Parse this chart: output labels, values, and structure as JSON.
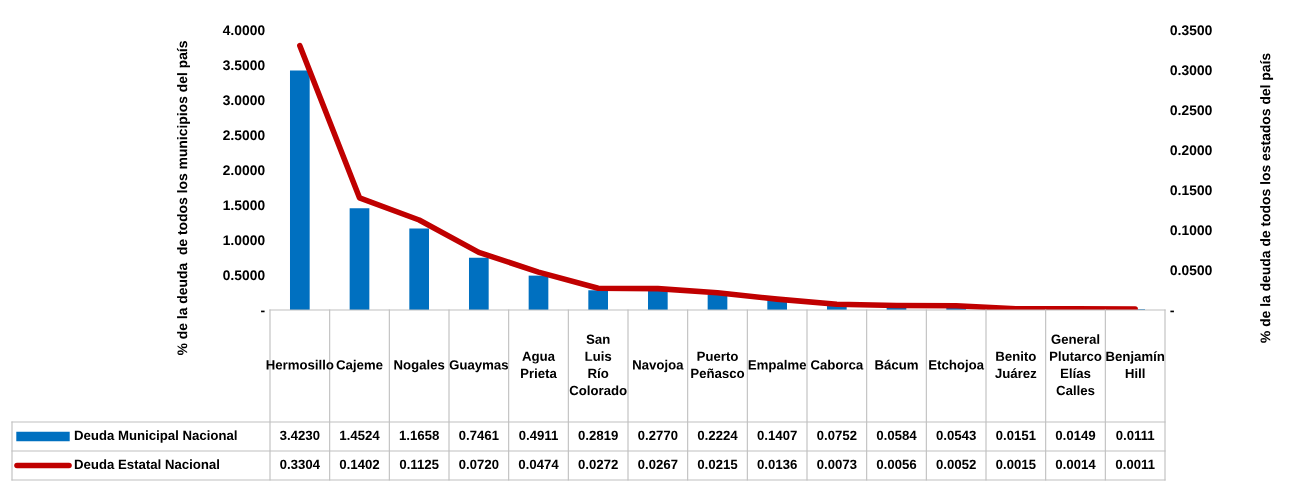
{
  "chart_data": {
    "type": "bar",
    "ylabel": "% de la deuda  de todos los municipios del país",
    "y2label": "% de la deuda de todos los estados del país",
    "categories": [
      "Hermosillo",
      "Cajeme",
      "Nogales",
      "Guaymas",
      "Agua Prieta",
      "San Luis Río Colorado",
      "Navojoa",
      "Puerto Peñasco",
      "Empalme",
      "Caborca",
      "Bácum",
      "Etchojoa",
      "Benito Juárez",
      "General Plutarco Elías Calles",
      "Benjamín Hill"
    ],
    "series": [
      {
        "name": "Deuda Municipal Nacional",
        "color": "#0070c0",
        "values": [
          3.423,
          1.4524,
          1.1658,
          0.7461,
          0.4911,
          0.2819,
          0.277,
          0.2224,
          0.1407,
          0.0752,
          0.0584,
          0.0543,
          0.0151,
          0.0149,
          0.0111
        ],
        "value_labels": [
          "3.4230",
          "1.4524",
          "1.1658",
          "0.7461",
          "0.4911",
          "0.2819",
          "0.2770",
          "0.2224",
          "0.1407",
          "0.0752",
          "0.0584",
          "0.0543",
          "0.0151",
          "0.0149",
          "0.0111"
        ]
      },
      {
        "name": "Deuda Estatal Nacional",
        "type": "line",
        "axis": "y2",
        "color": "#c00000",
        "values": [
          0.3304,
          0.1402,
          0.1125,
          0.072,
          0.0474,
          0.0272,
          0.0267,
          0.0215,
          0.0136,
          0.0073,
          0.0056,
          0.0052,
          0.0015,
          0.0014,
          0.0011
        ],
        "value_labels": [
          "0.3304",
          "0.1402",
          "0.1125",
          "0.0720",
          "0.0474",
          "0.0272",
          "0.0267",
          "0.0215",
          "0.0136",
          "0.0073",
          "0.0056",
          "0.0052",
          "0.0015",
          "0.0014",
          "0.0011"
        ]
      }
    ],
    "ylim": [
      0,
      4
    ],
    "yticks": [
      {
        "value": 0,
        "label": "-"
      },
      {
        "value": 0.5,
        "label": "0.5000"
      },
      {
        "value": 1,
        "label": "1.0000"
      },
      {
        "value": 1.5,
        "label": "1.5000"
      },
      {
        "value": 2,
        "label": "2.0000"
      },
      {
        "value": 2.5,
        "label": "2.5000"
      },
      {
        "value": 3,
        "label": "3.0000"
      },
      {
        "value": 3.5,
        "label": "3.5000"
      },
      {
        "value": 4,
        "label": "4.0000"
      }
    ],
    "y2lim": [
      0,
      0.35
    ],
    "y2ticks": [
      {
        "value": 0,
        "label": "-"
      },
      {
        "value": 0.05,
        "label": "0.0500"
      },
      {
        "value": 0.1,
        "label": "0.1000"
      },
      {
        "value": 0.15,
        "label": "0.1500"
      },
      {
        "value": 0.2,
        "label": "0.2000"
      },
      {
        "value": 0.25,
        "label": "0.2500"
      },
      {
        "value": 0.3,
        "label": "0.3000"
      },
      {
        "value": 0.35,
        "label": "0.3500"
      }
    ],
    "grid": false,
    "legend": "bottom left"
  }
}
